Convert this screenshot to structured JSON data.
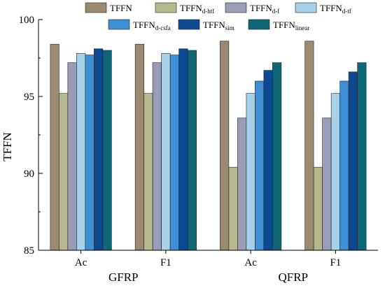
{
  "chart_data": {
    "type": "bar",
    "ylabel": "TFFN",
    "ylim": [
      85,
      100
    ],
    "yticks": [
      85,
      90,
      95,
      100
    ],
    "categories": [
      "Ac",
      "F1",
      "Ac",
      "F1"
    ],
    "groups": [
      {
        "label": "GFRP",
        "categories": [
          0,
          1
        ]
      },
      {
        "label": "QFRP",
        "categories": [
          2,
          3
        ]
      }
    ],
    "legend_position": "top",
    "series": [
      {
        "name": "TFFN",
        "sub": "",
        "color": "#9b8a70",
        "values": [
          98.4,
          98.4,
          98.6,
          98.6
        ]
      },
      {
        "name": "TFFN",
        "sub": "d-htf",
        "color": "#b6b88e",
        "values": [
          95.2,
          95.2,
          90.4,
          90.4
        ]
      },
      {
        "name": "TFFN",
        "sub": "d-f",
        "color": "#9a9db8",
        "values": [
          97.2,
          97.2,
          93.6,
          93.6
        ]
      },
      {
        "name": "TFFN",
        "sub": "d-tf",
        "color": "#a7d0ea",
        "values": [
          97.8,
          97.8,
          95.2,
          95.2
        ]
      },
      {
        "name": "TFFN",
        "sub": "d-csfa",
        "color": "#3f8fd6",
        "values": [
          97.7,
          97.7,
          96.0,
          96.0
        ]
      },
      {
        "name": "TFFN",
        "sub": "sim",
        "color": "#0d4a91",
        "values": [
          98.1,
          98.1,
          96.7,
          96.6
        ]
      },
      {
        "name": "TFFN",
        "sub": "linear",
        "color": "#0f6677",
        "values": [
          98.0,
          98.0,
          97.2,
          97.2
        ]
      }
    ]
  }
}
